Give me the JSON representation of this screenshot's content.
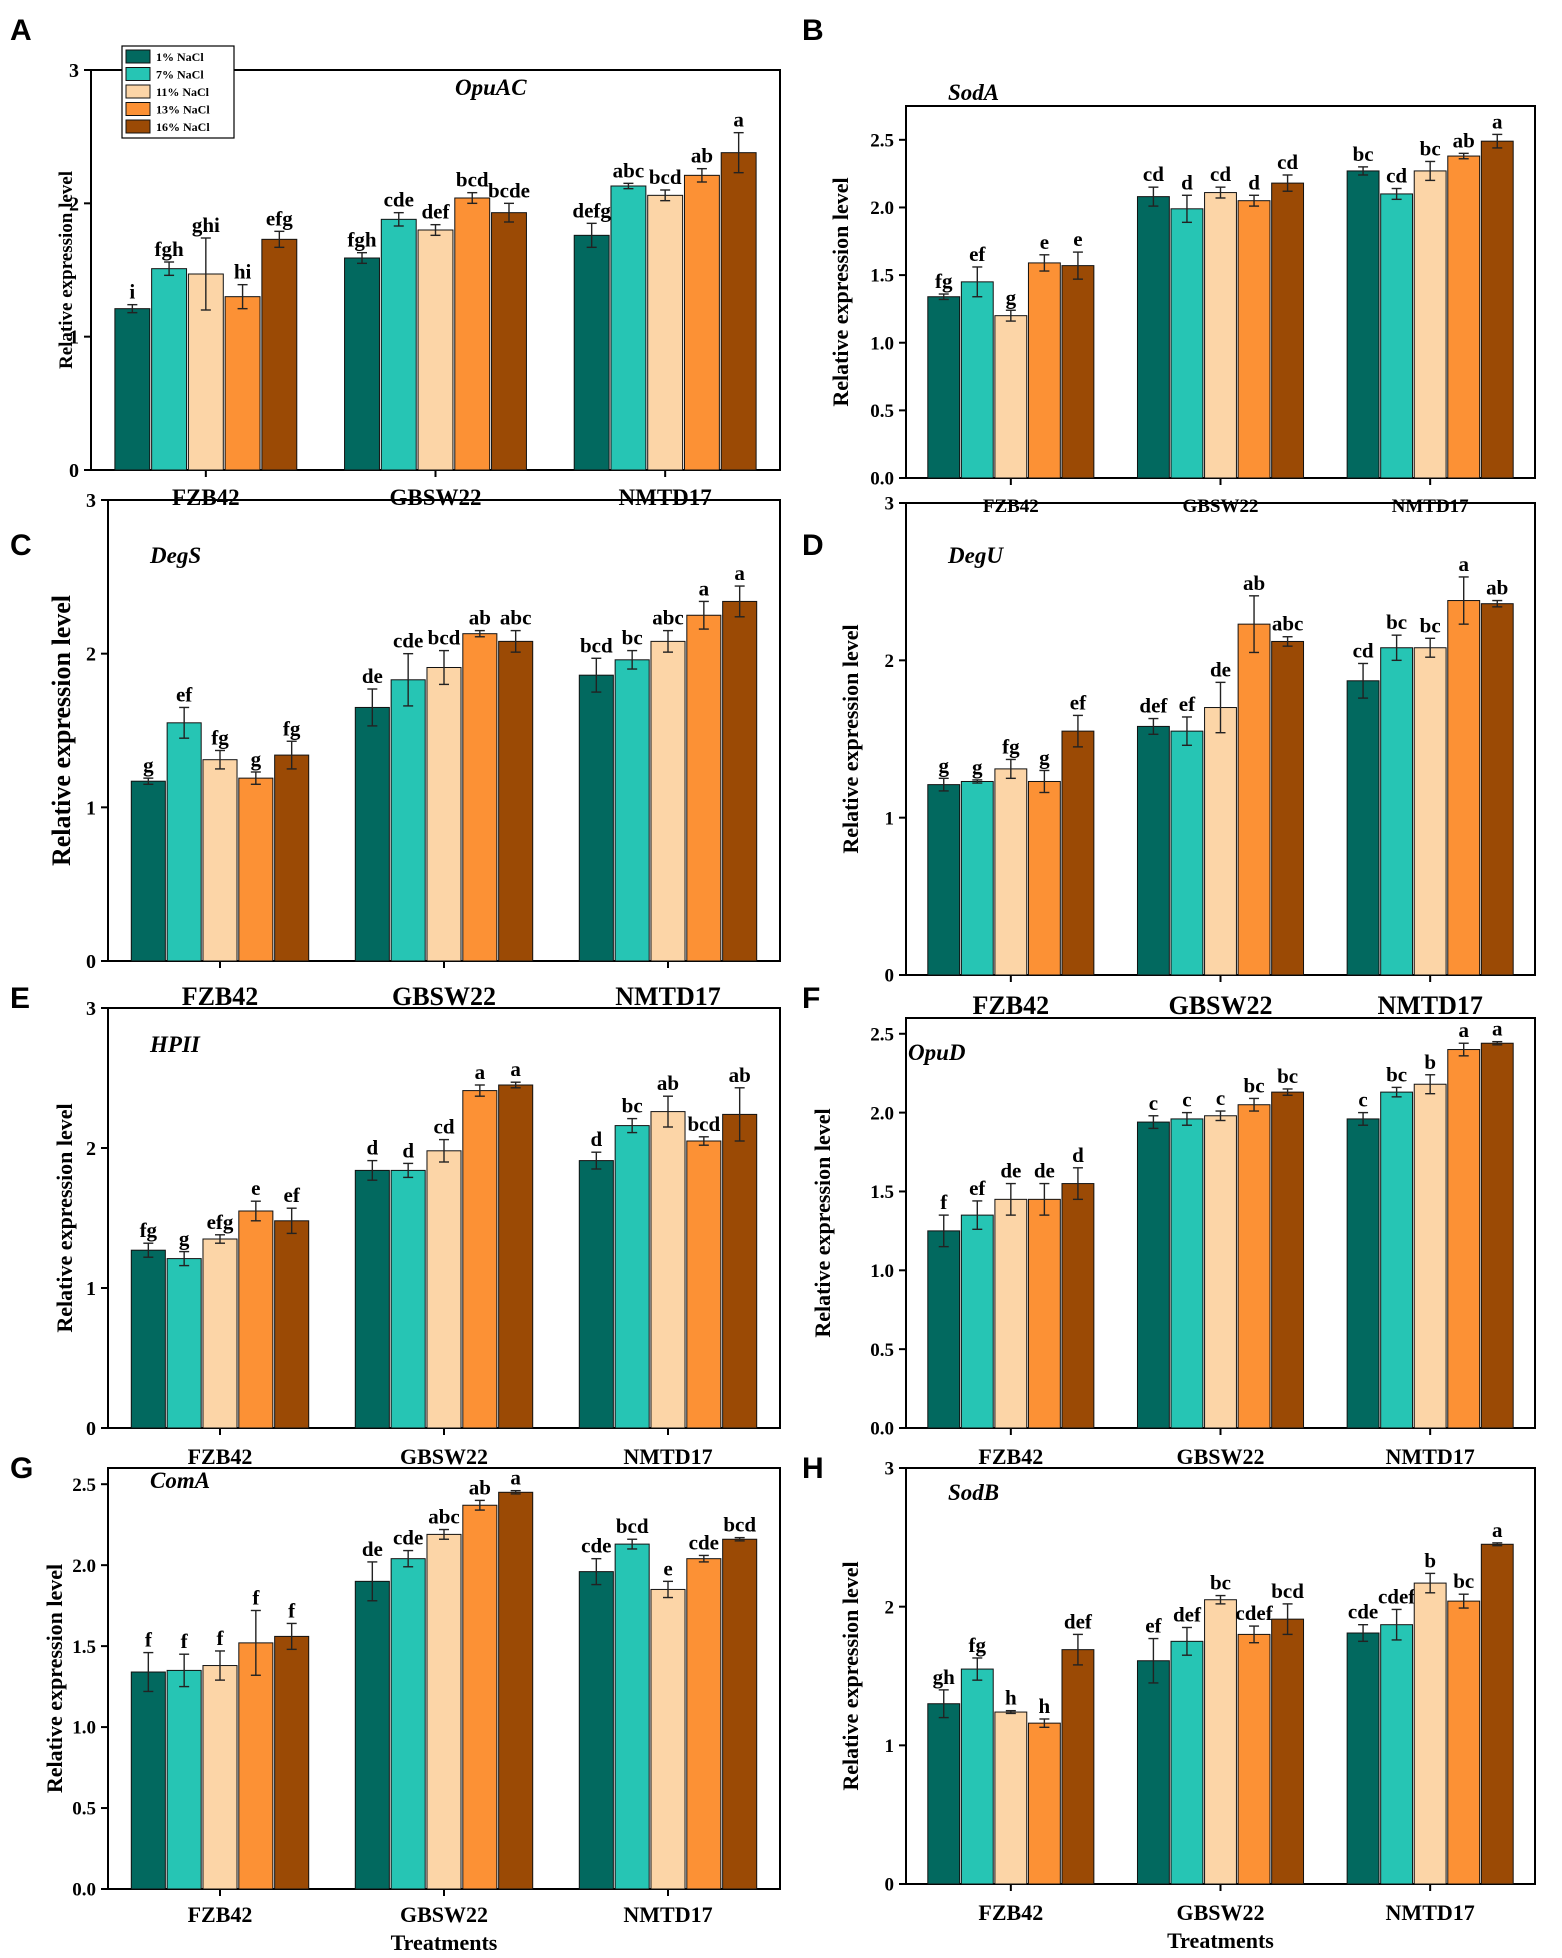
{
  "figure": {
    "series_names": [
      "1% NaCl",
      "7% NaCl",
      "11% NaCl",
      "13% NaCl",
      "16% NaCl"
    ],
    "series_colors": [
      "#02695f",
      "#26c5b4",
      "#fcd5a7",
      "#fc9135",
      "#9b4a05"
    ]
  },
  "chart_data": [
    {
      "panel": "A",
      "type": "bar",
      "title": "OpuAC",
      "ylabel": "Relative expression level",
      "xlabel": "",
      "categories": [
        "FZB42",
        "GBSW22",
        "NMTD17"
      ],
      "ylim": [
        0,
        3
      ],
      "yticks": [
        "0",
        "1",
        "2",
        "3"
      ],
      "series": [
        {
          "name": "1% NaCl",
          "values": [
            1.21,
            1.59,
            1.76
          ],
          "errors": [
            0.03,
            0.04,
            0.09
          ],
          "labels": [
            "i",
            "fgh",
            "defg"
          ]
        },
        {
          "name": "7% NaCl",
          "values": [
            1.51,
            1.88,
            2.13
          ],
          "errors": [
            0.05,
            0.05,
            0.02
          ],
          "labels": [
            "fgh",
            "cde",
            "abc"
          ]
        },
        {
          "name": "11% NaCl",
          "values": [
            1.47,
            1.8,
            2.06
          ],
          "errors": [
            0.27,
            0.04,
            0.04
          ],
          "labels": [
            "ghi",
            "def",
            "bcd"
          ]
        },
        {
          "name": "13% NaCl",
          "values": [
            1.3,
            2.04,
            2.21
          ],
          "errors": [
            0.09,
            0.04,
            0.05
          ],
          "labels": [
            "hi",
            "bcd",
            "ab"
          ]
        },
        {
          "name": "16% NaCl",
          "values": [
            1.73,
            1.93,
            2.38
          ],
          "errors": [
            0.06,
            0.07,
            0.15
          ],
          "labels": [
            "efg",
            "bcde",
            "a"
          ]
        }
      ]
    },
    {
      "panel": "B",
      "type": "bar",
      "title": "SodA",
      "ylabel": "Relative expression level",
      "xlabel": "",
      "categories": [
        "FZB42",
        "GBSW22",
        "NMTD17"
      ],
      "ylim": [
        0,
        2.75
      ],
      "yticks": [
        "0.0",
        "0.5",
        "1.0",
        "1.5",
        "2.0",
        "2.5"
      ],
      "series": [
        {
          "name": "1% NaCl",
          "values": [
            1.34,
            2.08,
            2.27
          ],
          "errors": [
            0.02,
            0.07,
            0.03
          ],
          "labels": [
            "fg",
            "cd",
            "bc"
          ]
        },
        {
          "name": "7% NaCl",
          "values": [
            1.45,
            1.99,
            2.1
          ],
          "errors": [
            0.11,
            0.1,
            0.04
          ],
          "labels": [
            "ef",
            "d",
            "cd"
          ]
        },
        {
          "name": "11% NaCl",
          "values": [
            1.2,
            2.11,
            2.27
          ],
          "errors": [
            0.04,
            0.04,
            0.07
          ],
          "labels": [
            "g",
            "cd",
            "bc"
          ]
        },
        {
          "name": "13% NaCl",
          "values": [
            1.59,
            2.05,
            2.38
          ],
          "errors": [
            0.06,
            0.04,
            0.02
          ],
          "labels": [
            "e",
            "d",
            "ab"
          ]
        },
        {
          "name": "16% NaCl",
          "values": [
            1.57,
            2.18,
            2.49
          ],
          "errors": [
            0.1,
            0.06,
            0.05
          ],
          "labels": [
            "e",
            "cd",
            "a"
          ]
        }
      ]
    },
    {
      "panel": "C",
      "type": "bar",
      "title": "DegS",
      "ylabel": "Relative expression level",
      "xlabel": "",
      "categories": [
        "FZB42",
        "GBSW22",
        "NMTD17"
      ],
      "ylim": [
        0,
        3
      ],
      "yticks": [
        "0",
        "1",
        "2",
        "3"
      ],
      "series": [
        {
          "name": "1% NaCl",
          "values": [
            1.17,
            1.65,
            1.86
          ],
          "errors": [
            0.02,
            0.12,
            0.11
          ],
          "labels": [
            "g",
            "de",
            "bcd"
          ]
        },
        {
          "name": "7% NaCl",
          "values": [
            1.55,
            1.83,
            1.96
          ],
          "errors": [
            0.1,
            0.17,
            0.06
          ],
          "labels": [
            "ef",
            "cde",
            "bc"
          ]
        },
        {
          "name": "11% NaCl",
          "values": [
            1.31,
            1.91,
            2.08
          ],
          "errors": [
            0.06,
            0.11,
            0.07
          ],
          "labels": [
            "fg",
            "bcd",
            "abc"
          ]
        },
        {
          "name": "13% NaCl",
          "values": [
            1.19,
            2.13,
            2.25
          ],
          "errors": [
            0.04,
            0.02,
            0.09
          ],
          "labels": [
            "g",
            "ab",
            "a"
          ]
        },
        {
          "name": "16% NaCl",
          "values": [
            1.34,
            2.08,
            2.34
          ],
          "errors": [
            0.09,
            0.07,
            0.1
          ],
          "labels": [
            "fg",
            "abc",
            "a"
          ]
        }
      ]
    },
    {
      "panel": "D",
      "type": "bar",
      "title": "DegU",
      "ylabel": "Relative expression level",
      "xlabel": "",
      "categories": [
        "FZB42",
        "GBSW22",
        "NMTD17"
      ],
      "ylim": [
        0,
        3
      ],
      "yticks": [
        "0",
        "1",
        "2",
        "3"
      ],
      "series": [
        {
          "name": "1% NaCl",
          "values": [
            1.21,
            1.58,
            1.87
          ],
          "errors": [
            0.04,
            0.05,
            0.11
          ],
          "labels": [
            "g",
            "def",
            "cd"
          ]
        },
        {
          "name": "7% NaCl",
          "values": [
            1.23,
            1.55,
            2.08
          ],
          "errors": [
            0.01,
            0.09,
            0.08
          ],
          "labels": [
            "g",
            "ef",
            "bc"
          ]
        },
        {
          "name": "11% NaCl",
          "values": [
            1.31,
            1.7,
            2.08
          ],
          "errors": [
            0.06,
            0.16,
            0.06
          ],
          "labels": [
            "fg",
            "de",
            "bc"
          ]
        },
        {
          "name": "13% NaCl",
          "values": [
            1.23,
            2.23,
            2.38
          ],
          "errors": [
            0.07,
            0.18,
            0.15
          ],
          "labels": [
            "g",
            "ab",
            "a"
          ]
        },
        {
          "name": "16% NaCl",
          "values": [
            1.55,
            2.12,
            2.36
          ],
          "errors": [
            0.1,
            0.03,
            0.02
          ],
          "labels": [
            "ef",
            "abc",
            "ab"
          ]
        }
      ]
    },
    {
      "panel": "E",
      "type": "bar",
      "title": "HPII",
      "ylabel": "Relative expression level",
      "xlabel": "",
      "categories": [
        "FZB42",
        "GBSW22",
        "NMTD17"
      ],
      "ylim": [
        0,
        3
      ],
      "yticks": [
        "0",
        "1",
        "2",
        "3"
      ],
      "series": [
        {
          "name": "1% NaCl",
          "values": [
            1.27,
            1.84,
            1.91
          ],
          "errors": [
            0.05,
            0.07,
            0.06
          ],
          "labels": [
            "fg",
            "d",
            "d"
          ]
        },
        {
          "name": "7% NaCl",
          "values": [
            1.21,
            1.84,
            2.16
          ],
          "errors": [
            0.05,
            0.05,
            0.05
          ],
          "labels": [
            "g",
            "d",
            "bc"
          ]
        },
        {
          "name": "11% NaCl",
          "values": [
            1.35,
            1.98,
            2.26
          ],
          "errors": [
            0.03,
            0.08,
            0.11
          ],
          "labels": [
            "efg",
            "cd",
            "ab"
          ]
        },
        {
          "name": "13% NaCl",
          "values": [
            1.55,
            2.41,
            2.05
          ],
          "errors": [
            0.07,
            0.04,
            0.03
          ],
          "labels": [
            "e",
            "a",
            "bcd"
          ]
        },
        {
          "name": "16% NaCl",
          "values": [
            1.48,
            2.45,
            2.24
          ],
          "errors": [
            0.09,
            0.02,
            0.19
          ],
          "labels": [
            "ef",
            "a",
            "ab"
          ]
        }
      ]
    },
    {
      "panel": "F",
      "type": "bar",
      "title": "OpuD",
      "ylabel": "Relative expression level",
      "xlabel": "",
      "categories": [
        "FZB42",
        "GBSW22",
        "NMTD17"
      ],
      "ylim": [
        0,
        2.6
      ],
      "yticks": [
        "0.0",
        "0.5",
        "1.0",
        "1.5",
        "2.0",
        "2.5"
      ],
      "series": [
        {
          "name": "1% NaCl",
          "values": [
            1.25,
            1.94,
            1.96
          ],
          "errors": [
            0.1,
            0.04,
            0.04
          ],
          "labels": [
            "f",
            "c",
            "c"
          ]
        },
        {
          "name": "7% NaCl",
          "values": [
            1.35,
            1.96,
            2.13
          ],
          "errors": [
            0.09,
            0.04,
            0.03
          ],
          "labels": [
            "ef",
            "c",
            "bc"
          ]
        },
        {
          "name": "11% NaCl",
          "values": [
            1.45,
            1.98,
            2.18
          ],
          "errors": [
            0.1,
            0.03,
            0.06
          ],
          "labels": [
            "de",
            "c",
            "b"
          ]
        },
        {
          "name": "13% NaCl",
          "values": [
            1.45,
            2.05,
            2.4
          ],
          "errors": [
            0.1,
            0.04,
            0.04
          ],
          "labels": [
            "de",
            "bc",
            "a"
          ]
        },
        {
          "name": "16% NaCl",
          "values": [
            1.55,
            2.13,
            2.44
          ],
          "errors": [
            0.1,
            0.02,
            0.01
          ],
          "labels": [
            "d",
            "bc",
            "a"
          ]
        }
      ]
    },
    {
      "panel": "G",
      "type": "bar",
      "title": "ComA",
      "ylabel": "Relative expression level",
      "xlabel": "Treatments",
      "categories": [
        "FZB42",
        "GBSW22",
        "NMTD17"
      ],
      "ylim": [
        0,
        2.6
      ],
      "yticks": [
        "0.0",
        "0.5",
        "1.0",
        "1.5",
        "2.0",
        "2.5"
      ],
      "series": [
        {
          "name": "1% NaCl",
          "values": [
            1.34,
            1.9,
            1.96
          ],
          "errors": [
            0.12,
            0.12,
            0.08
          ],
          "labels": [
            "f",
            "de",
            "cde"
          ]
        },
        {
          "name": "7% NaCl",
          "values": [
            1.35,
            2.04,
            2.13
          ],
          "errors": [
            0.1,
            0.05,
            0.03
          ],
          "labels": [
            "f",
            "cde",
            "bcd"
          ]
        },
        {
          "name": "11% NaCl",
          "values": [
            1.38,
            2.19,
            1.85
          ],
          "errors": [
            0.09,
            0.03,
            0.05
          ],
          "labels": [
            "f",
            "abc",
            "e"
          ]
        },
        {
          "name": "13% NaCl",
          "values": [
            1.52,
            2.37,
            2.04
          ],
          "errors": [
            0.2,
            0.03,
            0.02
          ],
          "labels": [
            "f",
            "ab",
            "cde"
          ]
        },
        {
          "name": "16% NaCl",
          "values": [
            1.56,
            2.45,
            2.16
          ],
          "errors": [
            0.08,
            0.01,
            0.01
          ],
          "labels": [
            "f",
            "a",
            "bcd"
          ]
        }
      ]
    },
    {
      "panel": "H",
      "type": "bar",
      "title": "SodB",
      "ylabel": "Relative expression level",
      "xlabel": "Treatments",
      "categories": [
        "FZB42",
        "GBSW22",
        "NMTD17"
      ],
      "ylim": [
        0,
        3
      ],
      "yticks": [
        "0",
        "1",
        "2",
        "3"
      ],
      "series": [
        {
          "name": "1% NaCl",
          "values": [
            1.3,
            1.61,
            1.81
          ],
          "errors": [
            0.1,
            0.16,
            0.06
          ],
          "labels": [
            "gh",
            "ef",
            "cde"
          ]
        },
        {
          "name": "7% NaCl",
          "values": [
            1.55,
            1.75,
            1.87
          ],
          "errors": [
            0.08,
            0.1,
            0.11
          ],
          "labels": [
            "fg",
            "def",
            "cdef"
          ]
        },
        {
          "name": "11% NaCl",
          "values": [
            1.24,
            2.05,
            2.17
          ],
          "errors": [
            0.01,
            0.03,
            0.07
          ],
          "labels": [
            "h",
            "bc",
            "b"
          ]
        },
        {
          "name": "13% NaCl",
          "values": [
            1.16,
            1.8,
            2.04
          ],
          "errors": [
            0.03,
            0.06,
            0.05
          ],
          "labels": [
            "h",
            "cdef",
            "bc"
          ]
        },
        {
          "name": "16% NaCl",
          "values": [
            1.69,
            1.91,
            2.45
          ],
          "errors": [
            0.11,
            0.11,
            0.01
          ],
          "labels": [
            "def",
            "bcd",
            "a"
          ]
        }
      ]
    }
  ]
}
